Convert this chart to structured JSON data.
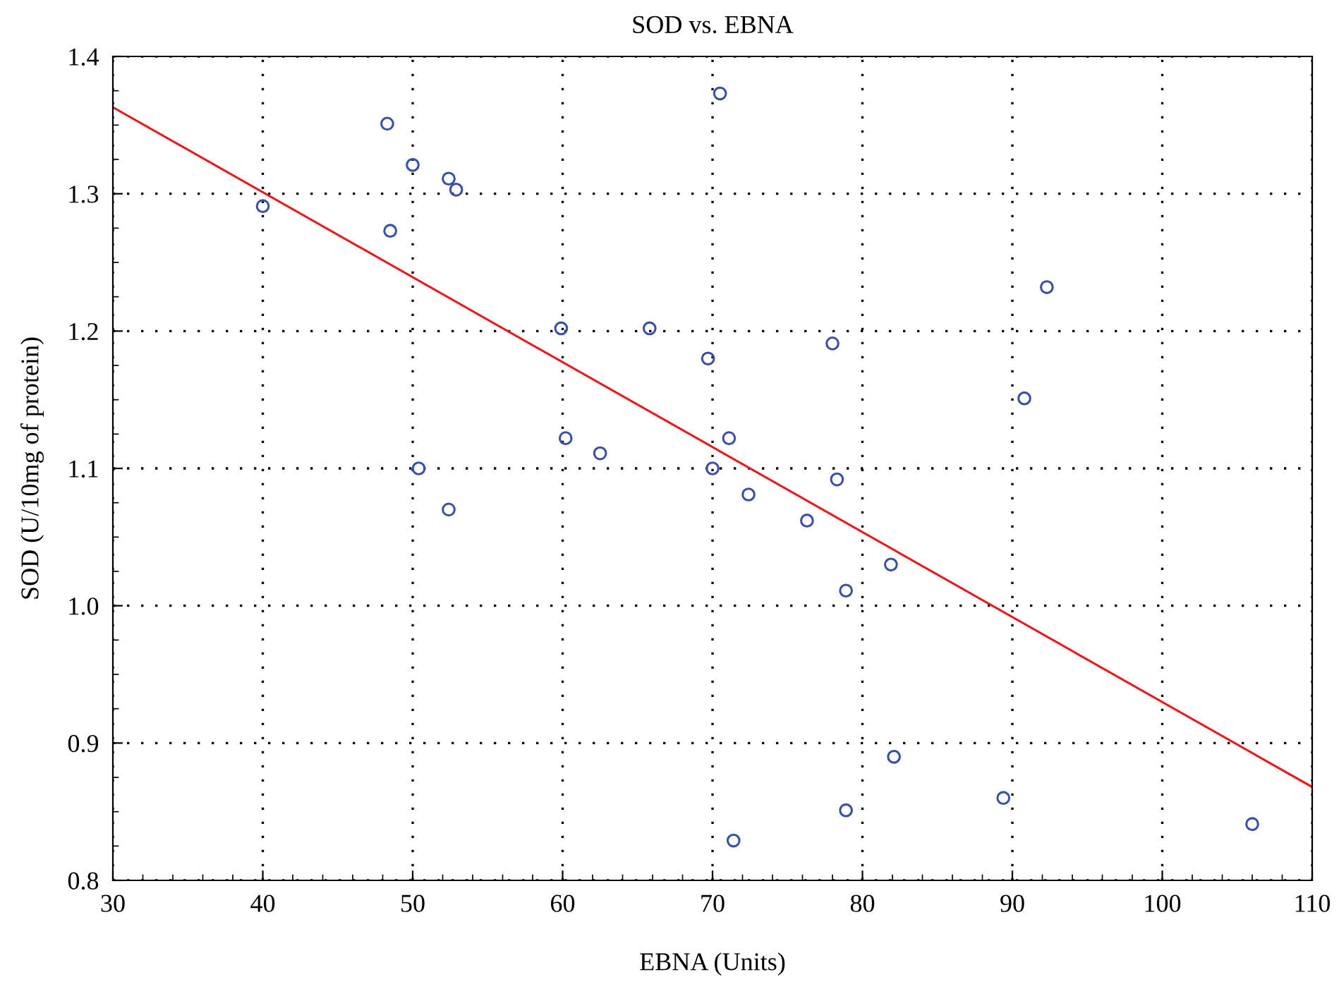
{
  "chart_data": {
    "type": "scatter",
    "title": "SOD vs. EBNA",
    "xlabel": "EBNA (Units)",
    "ylabel": "SOD (U/10mg of protein)",
    "series": [
      {
        "color": "#3a4fa8",
        "marker": "circle",
        "x": [
          40.0,
          48.3,
          48.5,
          50.0,
          52.4,
          52.9,
          50.4,
          52.4,
          59.9,
          60.2,
          62.5,
          65.8,
          70.5,
          69.7,
          70.0,
          71.1,
          72.4,
          71.4,
          76.3,
          78.0,
          78.3,
          78.9,
          78.9,
          81.9,
          82.1,
          89.4,
          90.8,
          92.3,
          106.0
        ],
        "values": [
          1.291,
          1.351,
          1.273,
          1.321,
          1.311,
          1.303,
          1.1,
          1.07,
          1.202,
          1.122,
          1.111,
          1.202,
          1.373,
          1.18,
          1.1,
          1.122,
          1.081,
          0.829,
          1.062,
          1.191,
          1.092,
          1.011,
          0.851,
          1.03,
          0.89,
          0.86,
          1.151,
          1.232,
          0.841
        ]
      },
      {
        "type": "line",
        "color": "#e8191e",
        "marker": "none",
        "line_style": "solid",
        "x": [
          30,
          110
        ],
        "values": [
          1.363,
          0.868
        ]
      }
    ],
    "xlim": [
      30,
      110
    ],
    "ylim": [
      0.8,
      1.4
    ],
    "xticks": [
      30,
      40,
      50,
      60,
      70,
      80,
      90,
      100,
      110
    ],
    "yticks": [
      {
        "value": 0.8,
        "label": "0.8"
      },
      {
        "value": 0.9,
        "label": "0.9"
      },
      {
        "value": 1.0,
        "label": "1.0"
      },
      {
        "value": 1.1,
        "label": "1.1"
      },
      {
        "value": 1.2,
        "label": "1.2"
      },
      {
        "value": 1.3,
        "label": "1.3"
      },
      {
        "value": 1.4,
        "label": "1.4"
      }
    ],
    "grid": true
  }
}
